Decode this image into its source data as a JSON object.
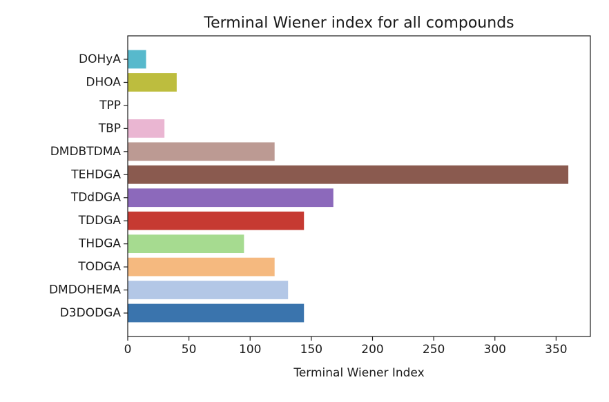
{
  "chart_data": {
    "type": "bar",
    "orientation": "horizontal",
    "title": "Terminal Wiener index for all compounds",
    "xlabel": "Terminal Wiener Index",
    "ylabel": "",
    "xlim": [
      0,
      378
    ],
    "xticks": [
      0,
      50,
      100,
      150,
      200,
      250,
      300,
      350
    ],
    "grid": false,
    "legend": "none",
    "categories": [
      "D3DODGA",
      "DMDOHEMA",
      "TODGA",
      "THDGA",
      "TDDGA",
      "TDdDGA",
      "TEHDGA",
      "DMDBTDMA",
      "TBP",
      "TPP",
      "DHOA",
      "DOHyA"
    ],
    "values": [
      144,
      131,
      120,
      95,
      144,
      168,
      360,
      120,
      30,
      0,
      40,
      15
    ],
    "colors": [
      "#3a74ad",
      "#b3c7e6",
      "#f5b97f",
      "#a6db90",
      "#c63a32",
      "#8c69bb",
      "#8a5a4f",
      "#bc9a93",
      "#eab6d2",
      "#7f7f7f",
      "#bdbd3e",
      "#57b9cc"
    ]
  }
}
